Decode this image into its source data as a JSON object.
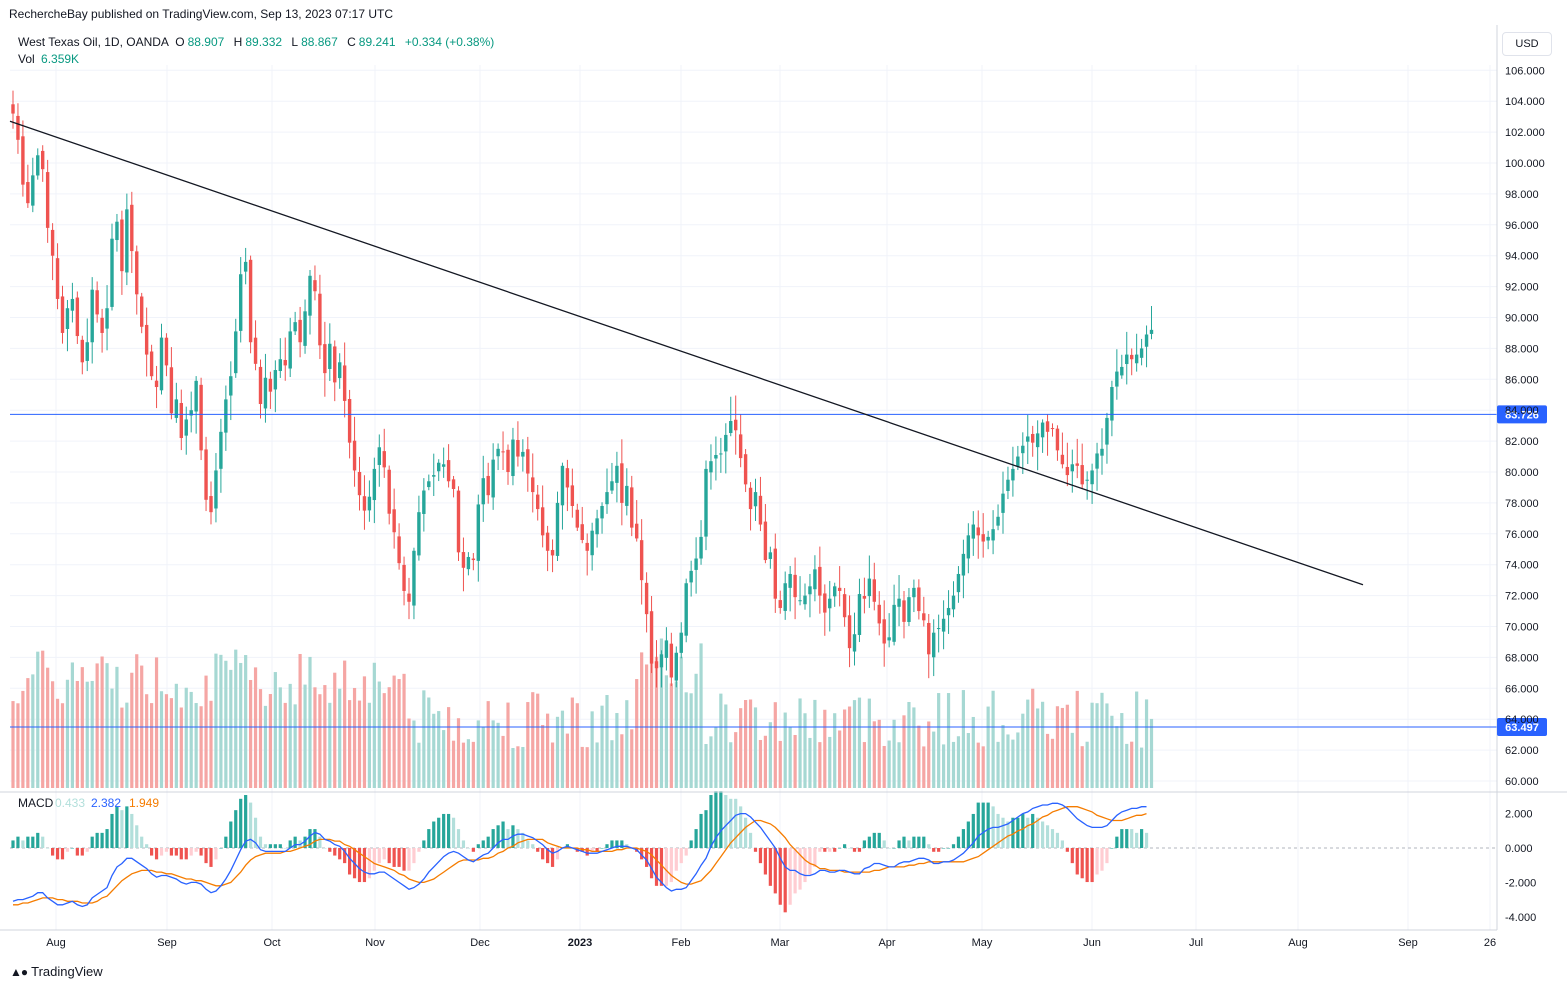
{
  "header": {
    "publisher": "RechercheBay published on TradingView.com, Sep 13, 2023 07:17 UTC"
  },
  "legend": {
    "symbol": "West Texas Oil, 1D, OANDA",
    "o_label": "O",
    "o_value": "88.907",
    "h_label": "H",
    "h_value": "89.332",
    "l_label": "L",
    "l_value": "88.867",
    "c_label": "C",
    "c_value": "89.241",
    "change": "+0.334 (+0.38%)",
    "vol_label": "Vol",
    "vol_value": "6.359K"
  },
  "macd_legend": {
    "label": "MACD",
    "hist": "0.433",
    "macd": "2.382",
    "signal": "1.949"
  },
  "currency_button": "USD",
  "footer": {
    "brand": "TradingView"
  },
  "colors": {
    "up": "#26a69a",
    "down": "#ef5350",
    "macd": "#2962ff",
    "signal": "#f57c00",
    "hline": "#2962ff"
  },
  "chart_data": {
    "type": "candlestick",
    "price_axis": {
      "min": 60,
      "max": 106,
      "ticks": [
        "106.000",
        "104.000",
        "102.000",
        "100.000",
        "98.000",
        "96.000",
        "94.000",
        "92.000",
        "90.000",
        "88.000",
        "86.000",
        "84.000",
        "82.000",
        "80.000",
        "78.000",
        "76.000",
        "74.000",
        "72.000",
        "70.000",
        "68.000",
        "66.000",
        "64.000",
        "62.000",
        "60.000"
      ]
    },
    "macd_axis": {
      "ticks": [
        "2.000",
        "0.000",
        "-2.000",
        "-4.000"
      ]
    },
    "x_ticks": [
      "Aug",
      "Sep",
      "Oct",
      "Nov",
      "Dec",
      "2023",
      "Feb",
      "Mar",
      "Apr",
      "May",
      "Jun",
      "Jul",
      "Aug",
      "Sep",
      "26"
    ],
    "horizontal_levels": [
      {
        "value": 83.726,
        "label": "83.726"
      },
      {
        "value": 63.497,
        "label": "63.497"
      }
    ],
    "trendline": {
      "start": {
        "date": "2022-07-20",
        "price": 102.7
      },
      "end": {
        "date": "2023-08-21",
        "price": 72.7
      }
    },
    "closes": [
      103.2,
      101.5,
      98.6,
      97.4,
      99.2,
      100.5,
      99.6,
      95.8,
      94.0,
      91.2,
      89.0,
      90.6,
      91.2,
      88.8,
      87.1,
      88.4,
      91.8,
      90.2,
      89.0,
      90.6,
      95.1,
      96.2,
      93.0,
      97.0,
      94.3,
      91.5,
      89.4,
      87.6,
      86.2,
      85.5,
      88.7,
      86.9,
      83.8,
      84.7,
      82.2,
      83.4,
      84.0,
      85.9,
      81.4,
      78.2,
      77.4,
      80.1,
      82.6,
      84.7,
      86.2,
      89.1,
      92.8,
      93.6,
      88.4,
      87.0,
      84.4,
      86.1,
      85.2,
      86.6,
      87.3,
      86.9,
      89.1,
      89.7,
      88.4,
      90.4,
      92.7,
      91.7,
      88.2,
      86.4,
      88.3,
      85.8,
      87.1,
      84.6,
      81.9,
      80.1,
      78.5,
      77.5,
      78.4,
      80.2,
      81.6,
      80.3,
      77.3,
      76.1,
      74.1,
      72.3,
      71.6,
      74.9,
      77.4,
      78.8,
      79.4,
      79.8,
      80.6,
      80.5,
      79.4,
      78.9,
      74.8,
      73.8,
      74.5,
      74.3,
      77.9,
      79.6,
      78.5,
      80.8,
      81.5,
      81.3,
      80.0,
      82.1,
      81.0,
      81.3,
      79.9,
      78.7,
      77.6,
      75.9,
      74.9,
      74.6,
      78.0,
      80.4,
      79.0,
      77.8,
      76.4,
      75.6,
      74.9,
      76.2,
      77.0,
      77.8,
      78.7,
      79.4,
      80.4,
      78.0,
      79.1,
      76.4,
      75.7,
      73.0,
      70.8,
      67.6,
      67.3,
      68.2,
      69.1,
      66.7,
      68.3,
      69.6,
      72.8,
      73.6,
      74.4,
      75.8,
      80.2,
      80.7,
      81.1,
      81.2,
      82.4,
      83.3,
      82.7,
      80.9,
      79.2,
      77.6,
      78.7,
      76.6,
      74.3,
      74.8,
      71.8,
      71.2,
      72.8,
      73.4,
      71.9,
      71.7,
      72.0,
      72.6,
      73.7,
      72.0,
      70.9,
      71.8,
      72.6,
      72.3,
      70.6,
      68.6,
      69.5,
      72.1,
      71.8,
      73.1,
      71.6,
      70.2,
      68.9,
      69.3,
      71.4,
      71.8,
      70.3,
      71.9,
      72.5,
      71.0,
      70.4,
      68.2,
      69.6,
      69.9,
      70.5,
      71.2,
      72.0,
      73.4,
      74.7,
      75.9,
      76.6,
      75.9,
      75.5,
      75.8,
      76.3,
      77.1,
      78.6,
      79.5,
      80.2,
      81.0,
      81.7,
      82.3,
      81.9,
      82.5,
      83.2,
      82.6,
      82.8,
      81.4,
      80.5,
      79.8,
      80.5,
      80.4,
      79.2,
      79.5,
      80.1,
      81.2,
      81.5,
      83.5,
      85.5,
      86.5,
      86.8,
      87.6,
      87.3,
      87.6,
      88.0,
      88.9,
      89.2
    ],
    "series": [
      {
        "name": "MACD",
        "values": [
          -3.1,
          -3.0,
          -3.0,
          -2.9,
          -2.8,
          -2.6,
          -2.6,
          -2.9,
          -3.1,
          -3.3,
          -3.3,
          -3.2,
          -3.1,
          -3.3,
          -3.4,
          -3.3,
          -2.9,
          -2.7,
          -2.5,
          -2.3,
          -1.6,
          -1.1,
          -0.9,
          -0.6,
          -0.6,
          -0.8,
          -1.0,
          -1.2,
          -1.5,
          -1.7,
          -1.6,
          -1.6,
          -1.7,
          -1.8,
          -2.0,
          -2.1,
          -2.0,
          -2.0,
          -2.1,
          -2.4,
          -2.6,
          -2.5,
          -2.2,
          -1.8,
          -1.3,
          -0.7,
          -0.1,
          0.4,
          0.5,
          0.3,
          -0.1,
          -0.2,
          -0.2,
          -0.2,
          -0.2,
          -0.2,
          0.0,
          0.2,
          0.2,
          0.4,
          0.7,
          0.9,
          0.8,
          0.5,
          0.4,
          0.2,
          0.1,
          -0.2,
          -0.6,
          -0.9,
          -1.2,
          -1.4,
          -1.5,
          -1.5,
          -1.4,
          -1.4,
          -1.6,
          -1.8,
          -2.0,
          -2.2,
          -2.4,
          -2.3,
          -2.1,
          -1.8,
          -1.4,
          -1.1,
          -0.8,
          -0.5,
          -0.3,
          -0.2,
          -0.3,
          -0.5,
          -0.7,
          -0.8,
          -0.6,
          -0.4,
          -0.3,
          0.0,
          0.3,
          0.5,
          0.5,
          0.7,
          0.8,
          0.8,
          0.7,
          0.6,
          0.4,
          0.2,
          -0.1,
          -0.3,
          -0.2,
          0.0,
          0.1,
          0.0,
          -0.1,
          -0.2,
          -0.3,
          -0.3,
          -0.3,
          -0.2,
          -0.1,
          0.0,
          0.1,
          0.1,
          0.1,
          0.0,
          -0.1,
          -0.4,
          -0.7,
          -1.2,
          -1.7,
          -2.0,
          -2.3,
          -2.5,
          -2.4,
          -2.4,
          -2.3,
          -1.9,
          -1.5,
          -1.0,
          -0.6,
          0.1,
          0.6,
          1.0,
          1.3,
          1.6,
          1.9,
          2.0,
          2.0,
          1.8,
          1.5,
          1.2,
          0.8,
          0.4,
          0.0,
          -0.6,
          -1.1,
          -1.3,
          -1.3,
          -1.5,
          -1.6,
          -1.6,
          -1.5,
          -1.3,
          -1.3,
          -1.4,
          -1.4,
          -1.3,
          -1.3,
          -1.4,
          -1.5,
          -1.5,
          -1.2,
          -1.1,
          -0.9,
          -0.9,
          -1.0,
          -1.1,
          -1.1,
          -0.9,
          -0.8,
          -0.8,
          -0.7,
          -0.6,
          -0.6,
          -0.7,
          -0.9,
          -0.9,
          -0.8,
          -0.8,
          -0.7,
          -0.5,
          -0.3,
          0.0,
          0.3,
          0.7,
          0.9,
          1.1,
          1.2,
          1.2,
          1.3,
          1.4,
          1.6,
          1.8,
          2.0,
          2.1,
          2.3,
          2.4,
          2.5,
          2.5,
          2.6,
          2.6,
          2.5,
          2.3,
          2.0,
          1.7,
          1.5,
          1.3,
          1.2,
          1.2,
          1.2,
          1.3,
          1.6,
          1.9,
          2.1,
          2.2,
          2.3,
          2.3,
          2.4,
          2.4
        ]
      },
      {
        "name": "Signal",
        "values": [
          -3.3,
          -3.3,
          -3.2,
          -3.2,
          -3.1,
          -3.0,
          -2.9,
          -2.9,
          -2.9,
          -3.0,
          -3.0,
          -3.1,
          -3.1,
          -3.1,
          -3.2,
          -3.2,
          -3.2,
          -3.1,
          -2.9,
          -2.8,
          -2.5,
          -2.2,
          -1.9,
          -1.7,
          -1.5,
          -1.4,
          -1.3,
          -1.3,
          -1.3,
          -1.4,
          -1.4,
          -1.5,
          -1.5,
          -1.6,
          -1.7,
          -1.8,
          -1.8,
          -1.9,
          -1.9,
          -2.0,
          -2.1,
          -2.2,
          -2.2,
          -2.1,
          -2.0,
          -1.7,
          -1.4,
          -1.0,
          -0.7,
          -0.5,
          -0.4,
          -0.3,
          -0.3,
          -0.3,
          -0.3,
          -0.2,
          -0.2,
          -0.1,
          0.0,
          0.1,
          0.2,
          0.4,
          0.5,
          0.5,
          0.5,
          0.4,
          0.4,
          0.2,
          0.1,
          -0.1,
          -0.3,
          -0.5,
          -0.7,
          -0.9,
          -1.0,
          -1.1,
          -1.2,
          -1.3,
          -1.5,
          -1.6,
          -1.8,
          -1.9,
          -2.0,
          -2.0,
          -1.9,
          -1.8,
          -1.6,
          -1.4,
          -1.2,
          -1.0,
          -0.8,
          -0.7,
          -0.7,
          -0.7,
          -0.7,
          -0.6,
          -0.6,
          -0.5,
          -0.3,
          -0.2,
          0.0,
          0.1,
          0.3,
          0.4,
          0.5,
          0.5,
          0.5,
          0.5,
          0.3,
          0.2,
          0.1,
          0.0,
          0.0,
          0.0,
          0.0,
          -0.1,
          -0.1,
          -0.2,
          -0.2,
          -0.2,
          -0.2,
          -0.2,
          -0.1,
          -0.1,
          0.0,
          0.0,
          0.0,
          -0.1,
          -0.2,
          -0.4,
          -0.7,
          -1.0,
          -1.3,
          -1.6,
          -1.8,
          -2.0,
          -2.1,
          -2.1,
          -2.0,
          -1.9,
          -1.6,
          -1.3,
          -0.9,
          -0.5,
          -0.1,
          0.3,
          0.6,
          0.9,
          1.2,
          1.4,
          1.6,
          1.6,
          1.5,
          1.4,
          1.2,
          0.9,
          0.6,
          0.2,
          -0.1,
          -0.4,
          -0.7,
          -0.9,
          -1.0,
          -1.2,
          -1.2,
          -1.3,
          -1.3,
          -1.3,
          -1.4,
          -1.4,
          -1.4,
          -1.4,
          -1.4,
          -1.4,
          -1.3,
          -1.3,
          -1.2,
          -1.1,
          -1.1,
          -1.1,
          -1.1,
          -1.0,
          -1.0,
          -0.9,
          -0.9,
          -0.8,
          -0.8,
          -0.8,
          -0.8,
          -0.8,
          -0.8,
          -0.8,
          -0.8,
          -0.7,
          -0.6,
          -0.5,
          -0.3,
          -0.1,
          0.1,
          0.3,
          0.5,
          0.7,
          0.8,
          1.0,
          1.1,
          1.3,
          1.4,
          1.6,
          1.8,
          1.9,
          2.1,
          2.2,
          2.3,
          2.4,
          2.4,
          2.4,
          2.3,
          2.2,
          2.1,
          1.9,
          1.8,
          1.7,
          1.6,
          1.6,
          1.6,
          1.7,
          1.8,
          1.9,
          1.9,
          2.0
        ]
      }
    ]
  }
}
